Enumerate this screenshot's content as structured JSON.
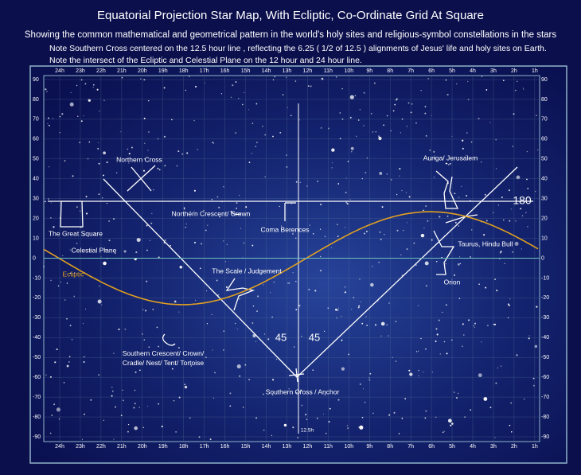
{
  "header": {
    "title": "Equatorial Projection Star Map, With Ecliptic, Co-Ordinate Grid At Square",
    "subtitle": "Showing the common mathematical and geometrical pattern in the world's holy sites and religious-symbol constellations in the stars",
    "notes": [
      "Note Southern Cross centered on the 12.5 hour line , reflecting the 6.25 ( 1/2 of 12.5 ) alignments of Jesus' life and holy sites on Earth.",
      "Note the intersect of the Ecliptic and Celestial Plane on the 12 hour and 24 hour line."
    ]
  },
  "map": {
    "hour_labels": [
      "24h",
      "23h",
      "22h",
      "21h",
      "20h",
      "19h",
      "18h",
      "17h",
      "16h",
      "15h",
      "14h",
      "13h",
      "12h",
      "11h",
      "10h",
      "9h",
      "8h",
      "7h",
      "6h",
      "5h",
      "4h",
      "3h",
      "2h",
      "1h"
    ],
    "dec_labels": [
      90,
      80,
      70,
      60,
      50,
      40,
      30,
      20,
      10,
      0,
      -10,
      -20,
      -30,
      -40,
      -50,
      -60,
      -70,
      -80,
      -90
    ],
    "labels": [
      "Northern Cross",
      "Northern Crescent/ Crown",
      "Coma Berences",
      "The Great Square",
      "Celestial Plane",
      "Ecliptic",
      "The Scale / Judgement",
      "Auriga/ Jerusalem",
      "Taurus, Hindu Bull",
      "Orion",
      "Southern Crescent/ Crown/ Cradle/ Nest/ Tent/ Tortoise",
      "Southern Cross / Anchor",
      "12.5h"
    ],
    "numbers": [
      180,
      45,
      45
    ]
  }
}
